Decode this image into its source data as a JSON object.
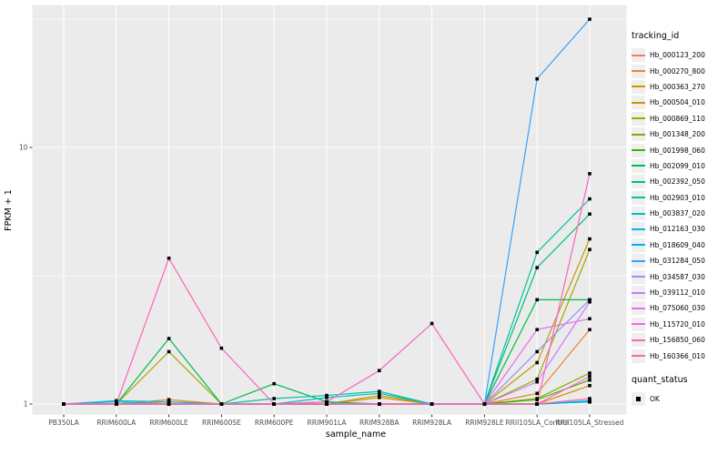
{
  "figure": {
    "bg": "#FFFFFF",
    "panel_bg": "#EBEBEB",
    "grid_color": "#FFFFFF",
    "axis_text_color": "#4D4D4D",
    "tick_color": "#333333",
    "point_color": "#000000"
  },
  "legend": {
    "tracking_title": "tracking_id",
    "quant_title": "quant_status",
    "quant_items": [
      {
        "label": "OK",
        "marker": "black-square"
      }
    ]
  },
  "chart_data": {
    "type": "line",
    "title": "",
    "xlabel": "sample_name",
    "ylabel": "FPKM + 1",
    "y_scale": "log10",
    "y_major_ticks": [
      1,
      10
    ],
    "y_minor_ticks": [
      3.16,
      31.6
    ],
    "ylim": [
      1,
      36
    ],
    "grid": true,
    "legend_position": "right",
    "point_marker": "black-square (quant_status = OK at every point)",
    "categories": [
      "PB350LA",
      "RRIM600LA",
      "RRIM600LE",
      "RRIM600SE",
      "RRIM600PE",
      "RRIM901LA",
      "RRIM928BA",
      "RRIM928LA",
      "RRIM928LE",
      "RRII105LA_Control",
      "RRII105LA_Stressed"
    ],
    "series": [
      {
        "name": "Hb_000123_200",
        "color": "#F8766D",
        "values": [
          1,
          1,
          1,
          1,
          1,
          1,
          1,
          1,
          1,
          1,
          1.02
        ]
      },
      {
        "name": "Hb_000270_800",
        "color": "#EA8331",
        "values": [
          1,
          1,
          1.02,
          1,
          1,
          1,
          1,
          1,
          1,
          1.1,
          1.95
        ]
      },
      {
        "name": "Hb_000363_270",
        "color": "#D89000",
        "values": [
          1,
          1,
          1.04,
          1,
          1,
          1,
          1.06,
          1,
          1,
          1,
          1.18
        ]
      },
      {
        "name": "Hb_000504_010",
        "color": "#C09B00",
        "values": [
          1,
          1,
          1,
          1,
          1,
          1,
          1.08,
          1,
          1,
          1.45,
          4.4
        ]
      },
      {
        "name": "Hb_000869_110",
        "color": "#A3A500",
        "values": [
          1,
          1,
          1.6,
          1,
          1,
          1,
          1,
          1,
          1,
          1.25,
          4.0
        ]
      },
      {
        "name": "Hb_001348_200",
        "color": "#7CAE00",
        "values": [
          1,
          1,
          1,
          1,
          1,
          1,
          1,
          1,
          1,
          1.05,
          1.32
        ]
      },
      {
        "name": "Hb_001998_060",
        "color": "#39B600",
        "values": [
          1,
          1,
          1,
          1,
          1,
          1,
          1,
          1,
          1,
          1.04,
          1.24
        ]
      },
      {
        "name": "Hb_002099_010",
        "color": "#00BB4E",
        "values": [
          1,
          1,
          1.8,
          1,
          1.2,
          1.02,
          1,
          1,
          1,
          2.55,
          2.55
        ]
      },
      {
        "name": "Hb_002392_050",
        "color": "#00BF7D",
        "values": [
          1,
          1,
          1,
          1,
          1,
          1.02,
          1,
          1,
          1,
          3.4,
          5.5
        ]
      },
      {
        "name": "Hb_002903_010",
        "color": "#00C1A3",
        "values": [
          1,
          1,
          1,
          1,
          1.05,
          1.08,
          1.12,
          1,
          1,
          3.9,
          6.3
        ]
      },
      {
        "name": "Hb_003837_020",
        "color": "#00BFC4",
        "values": [
          1,
          1.02,
          1,
          1,
          1,
          1.06,
          1.1,
          1,
          1,
          1,
          1.02
        ]
      },
      {
        "name": "Hb_012163_030",
        "color": "#00BAE0",
        "values": [
          1,
          1.03,
          1.02,
          1,
          1,
          1,
          1,
          1,
          1,
          1,
          1.02
        ]
      },
      {
        "name": "Hb_018609_040",
        "color": "#00B0F6",
        "values": [
          1,
          1,
          1,
          1,
          1,
          1,
          1,
          1,
          1,
          1,
          1.03
        ]
      },
      {
        "name": "Hb_031284_050",
        "color": "#35A2FF",
        "values": [
          1,
          1,
          1,
          1,
          1,
          1,
          1,
          1,
          1,
          18.5,
          31.6
        ]
      },
      {
        "name": "Hb_034587_030",
        "color": "#9590FF",
        "values": [
          1,
          1,
          1,
          1,
          1,
          1,
          1,
          1,
          1,
          1.6,
          2.55
        ]
      },
      {
        "name": "Hb_039112_010",
        "color": "#C77CFF",
        "values": [
          1,
          1,
          1,
          1,
          1,
          1,
          1,
          1,
          1,
          1.22,
          2.5
        ]
      },
      {
        "name": "Hb_075060_030",
        "color": "#E76BF3",
        "values": [
          1,
          1,
          1,
          1,
          1,
          1,
          1,
          1,
          1,
          1.95,
          2.15
        ]
      },
      {
        "name": "Hb_115720_010",
        "color": "#FA62DB",
        "values": [
          1,
          1,
          1,
          1,
          1,
          1,
          1,
          1,
          1,
          1,
          1.28
        ]
      },
      {
        "name": "Hb_156850_060",
        "color": "#FF62BC",
        "values": [
          1,
          1,
          3.7,
          1.65,
          1,
          1.02,
          1.35,
          2.06,
          1,
          1,
          7.9
        ]
      },
      {
        "name": "Hb_160366_010",
        "color": "#FF6A98",
        "values": [
          1,
          1,
          1,
          1,
          1,
          1,
          1,
          1,
          1,
          1,
          1.05
        ]
      }
    ]
  }
}
